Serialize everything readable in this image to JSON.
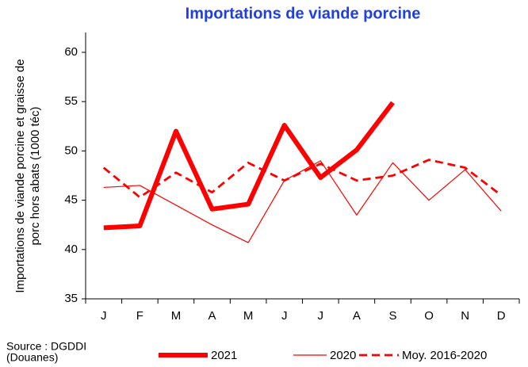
{
  "chart_data": {
    "type": "line",
    "title": "Importations de viande porcine",
    "ylabel_lines": [
      "Importations de viande porcine et graisse de",
      "porc hors abats (1000 téc)"
    ],
    "source_lines": [
      "Source : DGDDI",
      "(Douanes)"
    ],
    "categories": [
      "J",
      "F",
      "M",
      "A",
      "M",
      "J",
      "J",
      "A",
      "S",
      "O",
      "N",
      "D"
    ],
    "ylim": [
      35,
      60
    ],
    "yticks": [
      35,
      40,
      45,
      50,
      55,
      60
    ],
    "grid": false,
    "legend": "bottom",
    "series": [
      {
        "name": "2021",
        "color": "#ff0000",
        "dashed": false,
        "values": [
          42.2,
          42.4,
          52.0,
          44.1,
          44.6,
          52.6,
          47.3,
          50.1,
          54.9,
          null,
          null,
          null
        ]
      },
      {
        "name": "2020",
        "color": "#ff0000",
        "dashed": false,
        "values": [
          46.3,
          46.5,
          44.5,
          42.5,
          40.7,
          47.0,
          49.0,
          43.5,
          48.8,
          45.0,
          48.1,
          43.9
        ]
      },
      {
        "name": "Moy. 2016-2020",
        "color": "#ff0000",
        "dashed": true,
        "values": [
          48.3,
          45.3,
          47.8,
          45.8,
          48.8,
          47.0,
          48.7,
          47.0,
          47.5,
          49.1,
          48.3,
          45.5
        ]
      }
    ]
  }
}
